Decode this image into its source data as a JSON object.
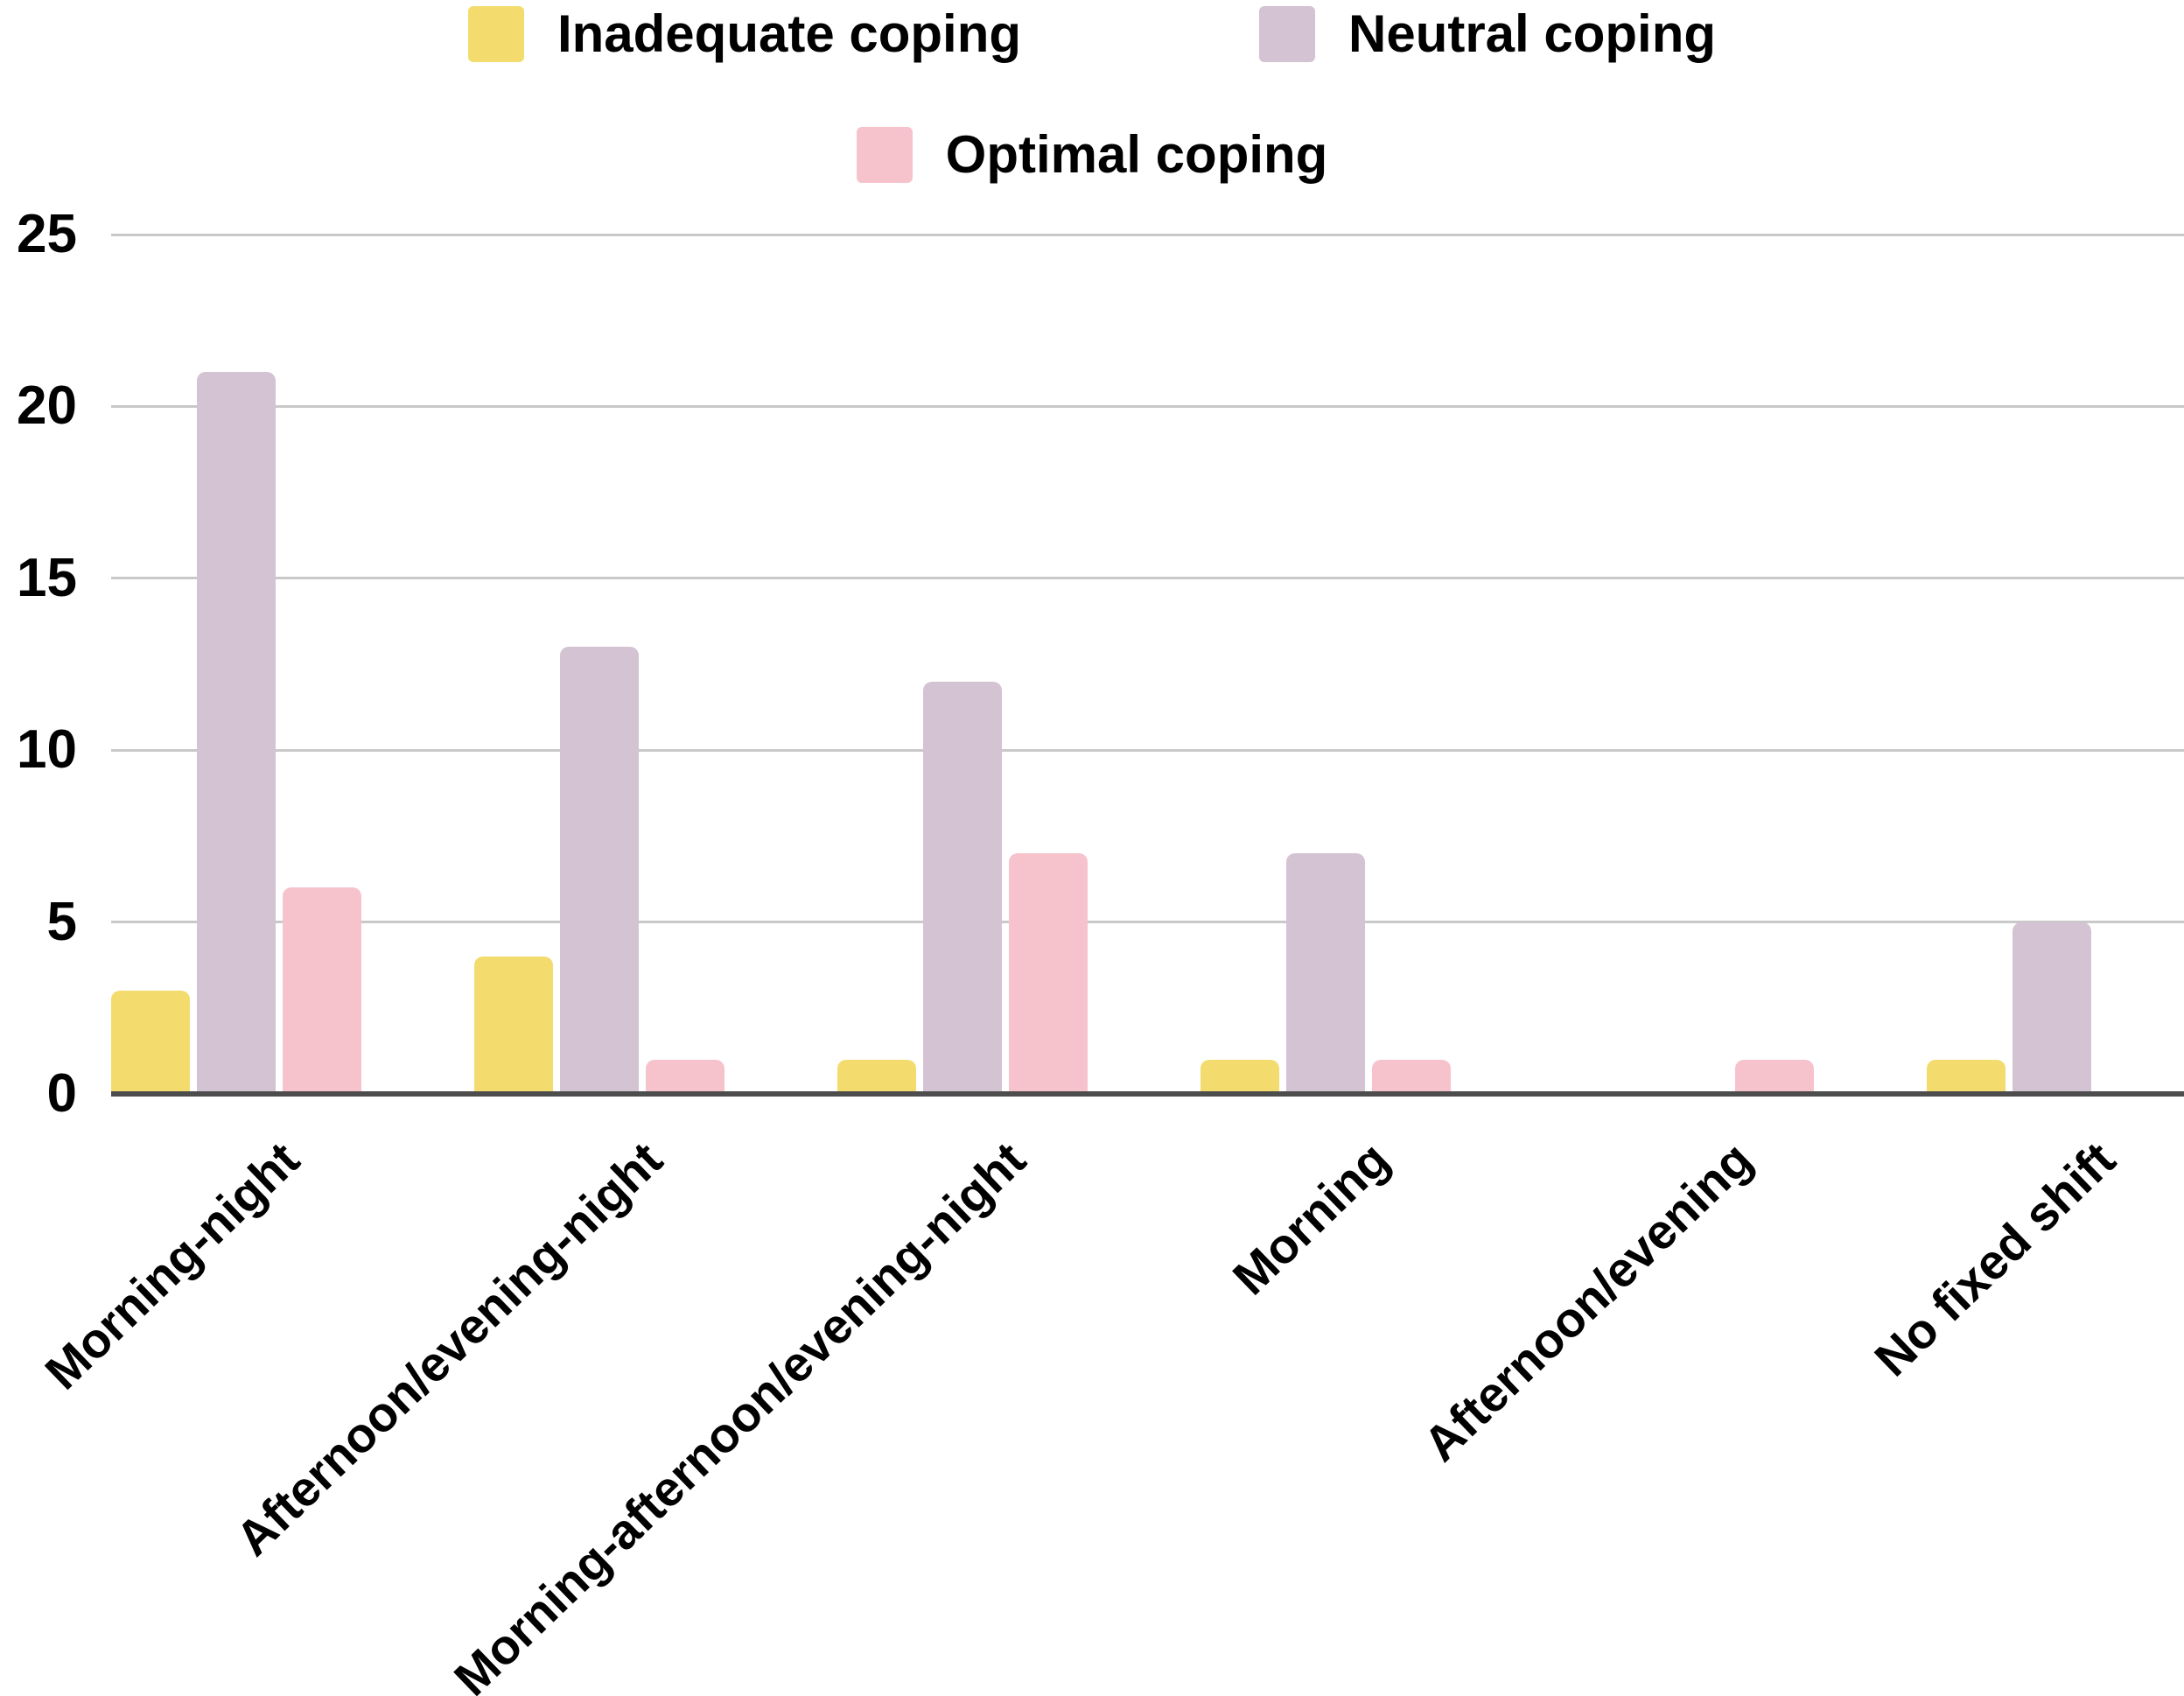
{
  "legend": {
    "items": [
      {
        "label": "Inadequate coping",
        "color": "#F3DB6E"
      },
      {
        "label": "Neutral coping",
        "color": "#D4C3D2"
      },
      {
        "label": "Optimal coping",
        "color": "#F6C3CD"
      }
    ]
  },
  "chart_data": {
    "type": "bar",
    "title": "",
    "xlabel": "",
    "ylabel": "",
    "categories": [
      "Morning-night",
      "Afternoon/evening-night",
      "Morning-afternoon/evening-night",
      "Morning",
      "Afternoon/evening",
      "No fixed shift"
    ],
    "series": [
      {
        "name": "Inadequate coping",
        "color": "#F3DB6E",
        "values": [
          3,
          4,
          1,
          1,
          0,
          1
        ]
      },
      {
        "name": "Neutral coping",
        "color": "#D4C3D2",
        "values": [
          21,
          13,
          12,
          7,
          0,
          5
        ]
      },
      {
        "name": "Optimal coping",
        "color": "#F6C3CD",
        "values": [
          6,
          1,
          7,
          1,
          1,
          0
        ]
      }
    ],
    "ylim": [
      0,
      25
    ],
    "yticks": [
      0,
      5,
      10,
      15,
      20,
      25
    ],
    "grid": "horizontal-only",
    "legend_position": "top-center-two-rows",
    "x_tick_rotation_deg": 45,
    "colors": {
      "gridline": "#C9C9C9",
      "axis_line": "#4D4D4D",
      "text": "#000000",
      "background": "#FFFFFF"
    }
  }
}
